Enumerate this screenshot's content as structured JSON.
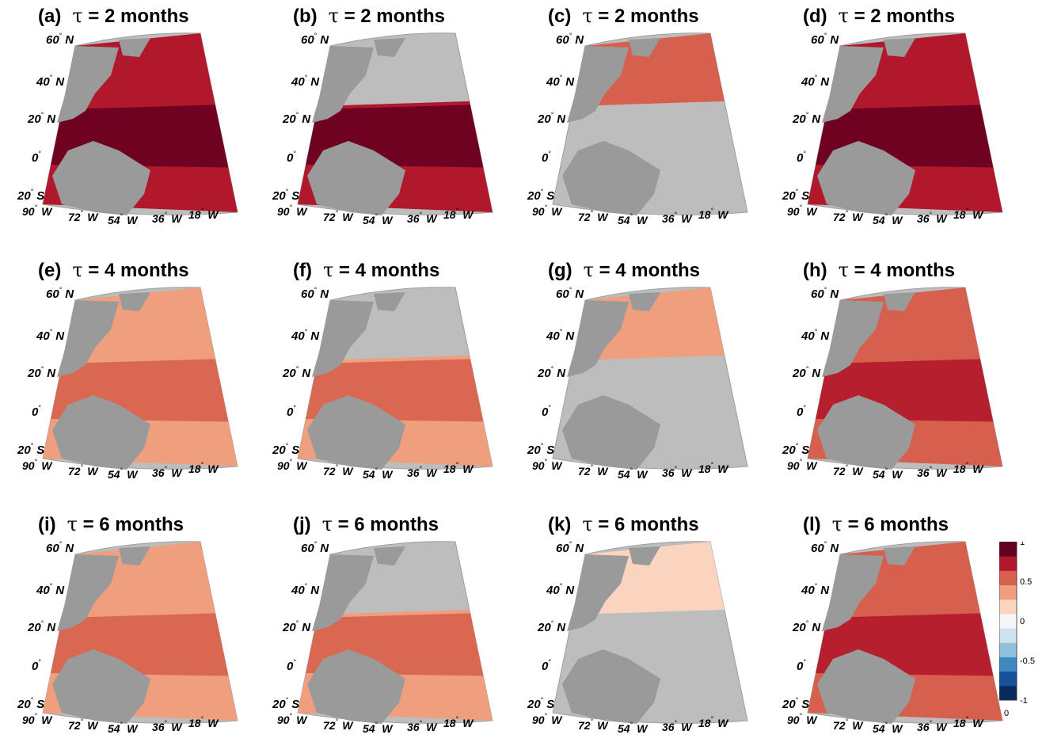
{
  "chart_data": {
    "type": "heatmap",
    "description_note": "",
    "colorbar": {
      "range": [
        -1,
        1
      ],
      "ticks": [
        "1",
        "0.5",
        "0",
        "-0.5",
        "-1"
      ],
      "bottom_label": "0",
      "colors": [
        "#0b2a5c",
        "#17509a",
        "#3f87c0",
        "#8fc1de",
        "#cfe3ef",
        "#f4f6f7",
        "#fbd4c0",
        "#ef9e7e",
        "#d6604d",
        "#b2182b",
        "#67001f"
      ]
    },
    "lat_labels": [
      "60",
      "N",
      "40",
      "N",
      "20",
      "N",
      "0",
      "",
      "20",
      "S"
    ],
    "lon_labels": [
      "90",
      "W",
      "72",
      "W",
      "54",
      "W",
      "36",
      "W",
      "18",
      "W"
    ],
    "panels": [
      {
        "label": "(a)",
        "tau": "τ = 2 months",
        "domain": "full",
        "level": 0.72
      },
      {
        "label": "(b)",
        "tau": "τ = 2 months",
        "domain": "south",
        "level": 0.8
      },
      {
        "label": "(c)",
        "tau": "τ = 2 months",
        "domain": "north",
        "level": 0.58
      },
      {
        "label": "(d)",
        "tau": "τ = 2 months",
        "domain": "full",
        "level": 0.85
      },
      {
        "label": "(e)",
        "tau": "τ = 4 months",
        "domain": "full",
        "level": 0.42
      },
      {
        "label": "(f)",
        "tau": "τ = 4 months",
        "domain": "south",
        "level": 0.48
      },
      {
        "label": "(g)",
        "tau": "τ = 4 months",
        "domain": "north",
        "level": 0.38
      },
      {
        "label": "(h)",
        "tau": "τ = 4 months",
        "domain": "full",
        "level": 0.68
      },
      {
        "label": "(i)",
        "tau": "τ = 6 months",
        "domain": "full",
        "level": 0.32
      },
      {
        "label": "(j)",
        "tau": "τ = 6 months",
        "domain": "south",
        "level": 0.34
      },
      {
        "label": "(k)",
        "tau": "τ = 6 months",
        "domain": "north",
        "level": 0.26
      },
      {
        "label": "(l)",
        "tau": "τ = 6 months",
        "domain": "full",
        "level": 0.58
      }
    ]
  }
}
